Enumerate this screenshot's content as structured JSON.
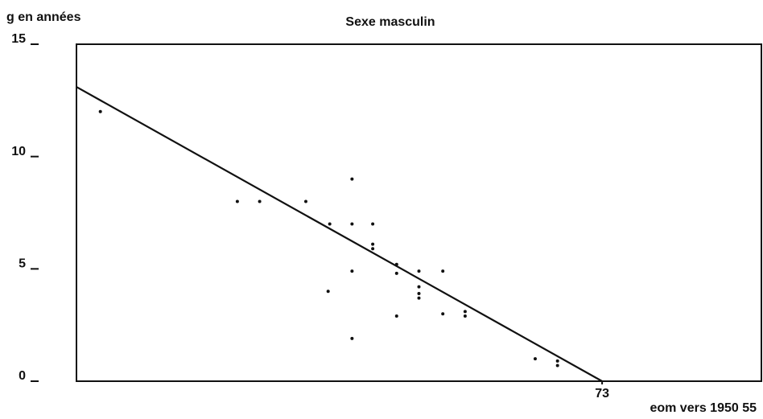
{
  "chart_data": {
    "type": "scatter",
    "title": "Sexe masculin",
    "ylabel": "g en années",
    "xlabel": "eom vers 1950 55",
    "xlim": [
      40,
      83
    ],
    "ylim": [
      0,
      15
    ],
    "xticks": [
      73
    ],
    "yticks": [
      0,
      5,
      10,
      15
    ],
    "color": "#111111",
    "x": [
      41.5,
      50.1,
      51.5,
      54.4,
      55.9,
      57.3,
      57.3,
      58.6,
      58.6,
      58.6,
      60.1,
      60.1,
      61.5,
      63.0,
      57.3,
      55.8,
      61.5,
      61.5,
      61.5,
      60.1,
      63.0,
      64.4,
      64.4,
      57.3,
      68.8,
      70.2,
      70.2
    ],
    "values": [
      12,
      8,
      8,
      8,
      7,
      9,
      7,
      7,
      6.1,
      5.9,
      5.2,
      4.8,
      4.9,
      4.9,
      4.9,
      4,
      4.2,
      3.9,
      3.7,
      2.9,
      3.0,
      3.1,
      2.9,
      1.9,
      1,
      0.9,
      0.7
    ],
    "fit": {
      "x": [
        40,
        73
      ],
      "values": [
        13.1,
        0
      ]
    }
  }
}
